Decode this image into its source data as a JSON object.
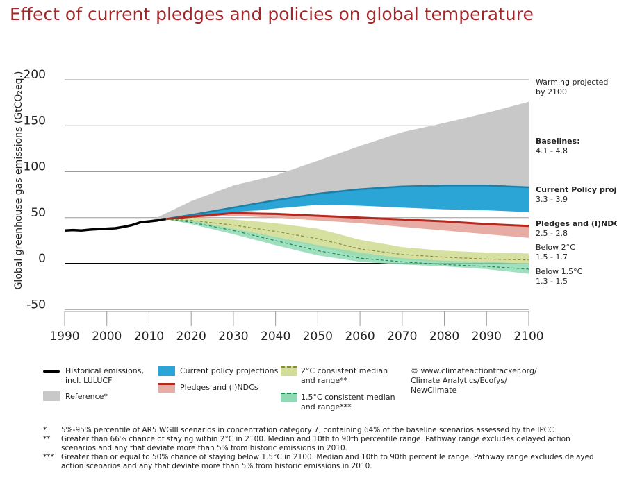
{
  "title": "Effect of current pledges and policies on global temperature",
  "chart_data": {
    "type": "area",
    "title": "Effect of current pledges and policies on global temperature",
    "ylabel": "Global greenhouse gas emissions (GtCO₂eq.)",
    "xlabel": "",
    "xlim": [
      1990,
      2100
    ],
    "ylim": [
      -50,
      200
    ],
    "x_ticks": [
      "1990",
      "2000",
      "2010",
      "2020",
      "2030",
      "2040",
      "2050",
      "2060",
      "2070",
      "2080",
      "2090",
      "2100"
    ],
    "y_ticks": [
      "200",
      "150",
      "100",
      "50",
      "0",
      "-50"
    ],
    "grid": "horizontal",
    "series": [
      {
        "name": "Historical emissions, incl. LULUCF",
        "color": "#000000",
        "x": [
          1990,
          1992,
          1994,
          1996,
          1998,
          2000,
          2002,
          2004,
          2006,
          2008,
          2010,
          2012,
          2013,
          2014
        ],
        "y": [
          36,
          36.5,
          36,
          37,
          37.5,
          38,
          38.5,
          40,
          42,
          45,
          46,
          47,
          48,
          48.5
        ]
      },
      {
        "name": "Reference",
        "color": "#c8c8c8",
        "x": [
          2010,
          2020,
          2030,
          2040,
          2050,
          2060,
          2070,
          2080,
          2090,
          2100
        ],
        "low": [
          46,
          50,
          54,
          60,
          64,
          68,
          72,
          76,
          80,
          84
        ],
        "high": [
          46,
          68,
          85,
          96,
          112,
          128,
          143,
          153,
          164,
          176
        ]
      },
      {
        "name": "Current policy projections",
        "color": "#2aa5d6",
        "x": [
          2014,
          2020,
          2030,
          2040,
          2050,
          2060,
          2070,
          2080,
          2090,
          2100
        ],
        "low": [
          48.5,
          51,
          56,
          60,
          64,
          63,
          61,
          59,
          58,
          56
        ],
        "high": [
          48.5,
          53,
          61,
          69,
          76,
          81,
          84,
          85,
          85,
          83
        ]
      },
      {
        "name": "Pledges and (I)NDCs",
        "color": "#e7aca4",
        "x": [
          2014,
          2020,
          2030,
          2040,
          2050,
          2060,
          2070,
          2080,
          2090,
          2100
        ],
        "low": [
          48.5,
          50,
          52,
          50,
          47,
          44,
          40,
          36,
          32,
          28
        ],
        "high": [
          48.5,
          51,
          55,
          55,
          53,
          51,
          49,
          47,
          44,
          42
        ],
        "median": [
          48.5,
          51,
          55,
          54,
          52,
          50,
          48,
          46,
          43,
          41
        ]
      },
      {
        "name": "2°C consistent median and range",
        "color": "#d4de9b",
        "x": [
          2014,
          2020,
          2030,
          2040,
          2050,
          2060,
          2070,
          2080,
          2090,
          2100
        ],
        "low": [
          48.5,
          46,
          38,
          28,
          18,
          8,
          4,
          2,
          1,
          0
        ],
        "high": [
          48.5,
          50,
          48,
          44,
          38,
          26,
          18,
          14,
          12,
          11
        ],
        "median": [
          48.5,
          47,
          42,
          35,
          27,
          16,
          10,
          7,
          5,
          4
        ]
      },
      {
        "name": "1.5°C consistent median and range",
        "color": "#8fd9b4",
        "x": [
          2014,
          2020,
          2030,
          2040,
          2050,
          2060,
          2070,
          2080,
          2090,
          2100
        ],
        "low": [
          48.5,
          43,
          32,
          20,
          9,
          2,
          -1,
          -3,
          -6,
          -11
        ],
        "high": [
          48.5,
          47,
          38,
          29,
          20,
          12,
          6,
          3,
          2,
          0
        ],
        "median": [
          48.5,
          45,
          36,
          25,
          14,
          6,
          2,
          -1,
          -3,
          -6
        ]
      }
    ]
  },
  "right_labels": {
    "header": "Warming projected\nby 2100",
    "baselines": {
      "name": "Baselines:",
      "range": "4.1 - 4.8"
    },
    "current_policy": {
      "name": "Current Policy projections",
      "range": "3.3 - 3.9"
    },
    "pledges": {
      "name": "Pledges and (I)NDCs",
      "range": "2.5 - 2.8"
    },
    "below2": {
      "name": "Below 2°C",
      "range": "1.5 - 1.7"
    },
    "below15": {
      "name": "Below 1.5°C",
      "range": "1.3 - 1.5"
    }
  },
  "legend": {
    "historical": "Historical emissions,\nincl. LULUCF",
    "reference": "Reference*",
    "current": "Current policy projections",
    "pledges": "Pledges and (I)NDCs",
    "two_c": "2°C consistent median\nand range**",
    "one_five_c": "1.5°C consistent median\nand range***",
    "credit": "© www.climateactiontracker.org/\nClimate Analytics/Ecofys/\nNewClimate"
  },
  "colors": {
    "title": "#a0282a",
    "current_policy_text": "#2aa5d6",
    "pledges_text": "#b5281f",
    "below2_text": "#b7c23c",
    "below15_text": "#3bbd7f"
  },
  "notes": [
    {
      "mark": "*",
      "text": "5%-95% percentile of AR5 WGIII scenarios in concentration category 7, containing 64% of the baseline scenarios assessed by the IPCC"
    },
    {
      "mark": "**",
      "text": "Greater than 66% chance of staying within 2°C in 2100. Median and 10th to 90th percentile range. Pathway range excludes delayed action scenarios and any that deviate more than 5% from historic emissions in 2010."
    },
    {
      "mark": "***",
      "text": "Greater than or equal to 50% chance of staying below 1.5°C in 2100. Median and 10th to 90th percentile range. Pathway range excludes delayed action scenarios and any that deviate more than 5% from historic emissions in 2010."
    }
  ]
}
